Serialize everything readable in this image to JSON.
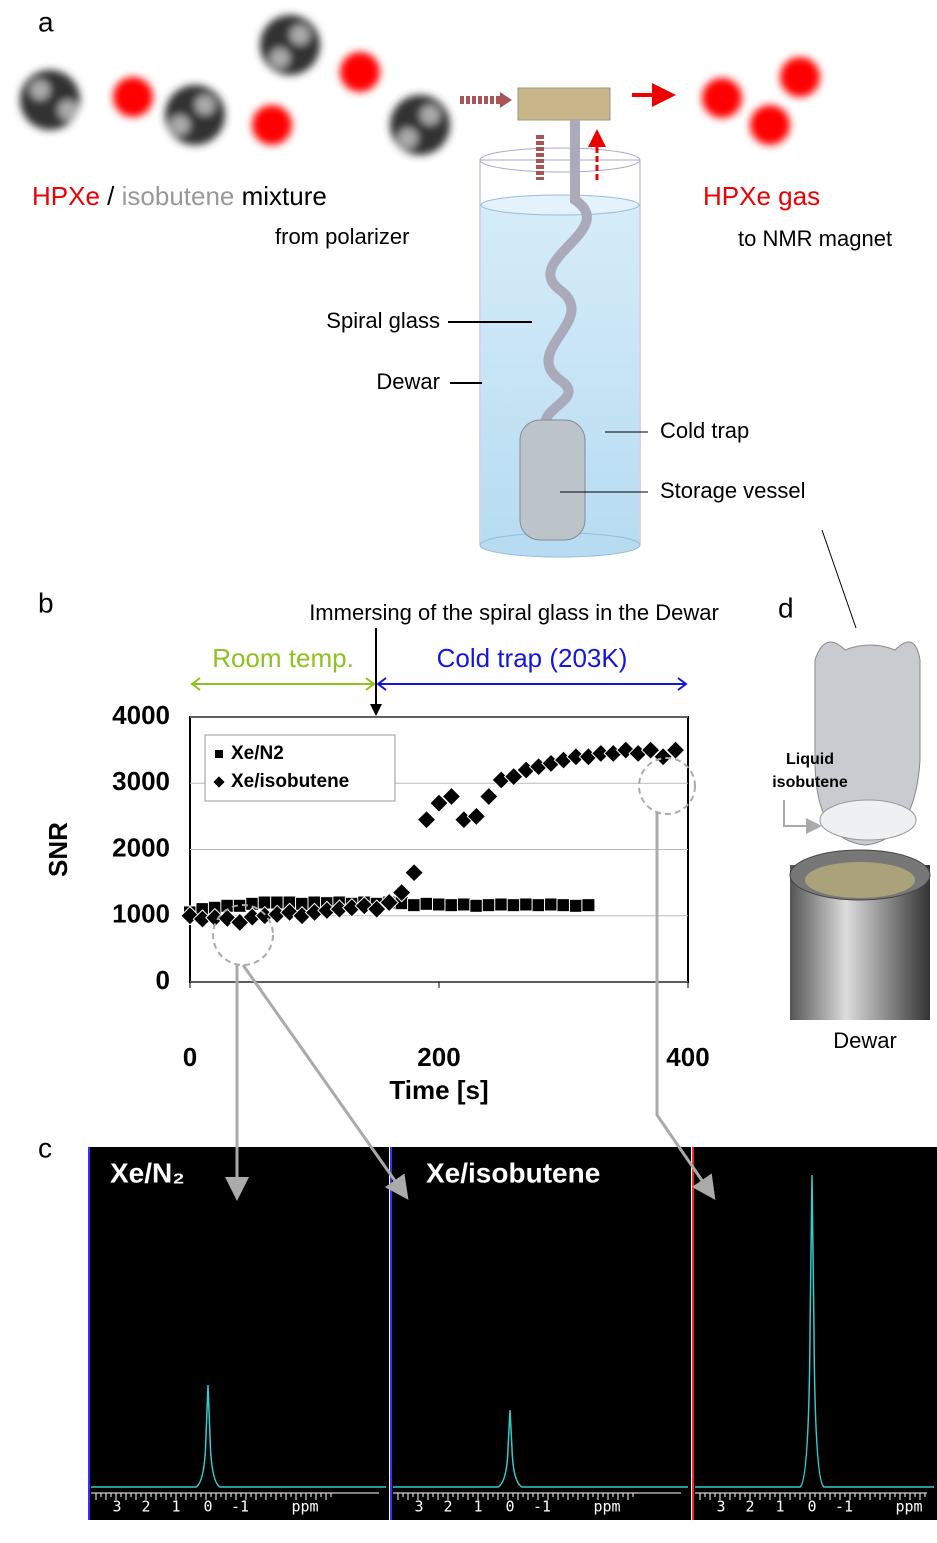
{
  "panel_a": {
    "label": "a",
    "hpxe": "HPXe",
    "slash": "/",
    "isobutene": "isobutene",
    "mixture": "mixture",
    "from": "from polarizer",
    "gas": "HPXe gas",
    "to": "to NMR magnet",
    "labels": [
      "Spiral glass",
      "Dewar",
      "Cold trap",
      "Storage vessel"
    ]
  },
  "chart_data": {
    "type": "scatter",
    "panel_label": "b",
    "annotation": "Immersing of the spiral glass in the Dewar",
    "phases": [
      "Room temp.",
      "Cold trap (203K)"
    ],
    "xlabel": "Time [s]",
    "ylabel": "SNR",
    "xlim": [
      0,
      400
    ],
    "xticks": [
      0,
      200,
      400
    ],
    "ylim": [
      0,
      4000
    ],
    "yticks": [
      0,
      1000,
      2000,
      3000,
      4000
    ],
    "grid": true,
    "legend": "upper left",
    "series": [
      {
        "name": "Xe/N2",
        "color": "#000000",
        "marker": "square",
        "x": [
          0,
          10,
          20,
          30,
          40,
          50,
          60,
          70,
          80,
          90,
          100,
          110,
          120,
          130,
          140,
          150,
          160,
          170,
          180,
          190,
          200,
          210,
          220,
          230,
          240,
          250,
          260,
          270,
          280,
          290,
          300,
          310,
          320
        ],
        "values": [
          1050,
          1100,
          1120,
          1150,
          1150,
          1180,
          1200,
          1200,
          1200,
          1180,
          1200,
          1190,
          1200,
          1180,
          1200,
          1180,
          1200,
          1190,
          1160,
          1180,
          1170,
          1160,
          1170,
          1150,
          1160,
          1170,
          1160,
          1170,
          1160,
          1170,
          1160,
          1150,
          1160
        ]
      },
      {
        "name": "Xe/isobutene",
        "color": "#000000",
        "marker": "diamond",
        "x": [
          0,
          10,
          20,
          30,
          40,
          50,
          60,
          70,
          80,
          90,
          100,
          110,
          120,
          130,
          140,
          150,
          160,
          170,
          180,
          190,
          200,
          210,
          220,
          230,
          240,
          250,
          260,
          270,
          280,
          290,
          300,
          310,
          320,
          330,
          340,
          350,
          360,
          370,
          380,
          390
        ],
        "values": [
          1000,
          950,
          970,
          960,
          900,
          980,
          1000,
          1020,
          1050,
          1000,
          1050,
          1080,
          1100,
          1120,
          1150,
          1100,
          1200,
          1350,
          1650,
          2450,
          2700,
          2800,
          2450,
          2500,
          2800,
          3050,
          3100,
          3200,
          3250,
          3300,
          3350,
          3400,
          3400,
          3450,
          3450,
          3500,
          3450,
          3500,
          3400,
          3500
        ]
      }
    ]
  },
  "panel_c": {
    "label": "c",
    "titles": [
      "Xe/N₂",
      "Xe/isobutene"
    ],
    "axis_labels": [
      "3",
      "2",
      "1",
      "0",
      "-1",
      "ppm"
    ]
  },
  "panel_d": {
    "label": "d",
    "liquid": [
      "Liquid",
      "isobutene"
    ],
    "dewar": "Dewar"
  }
}
